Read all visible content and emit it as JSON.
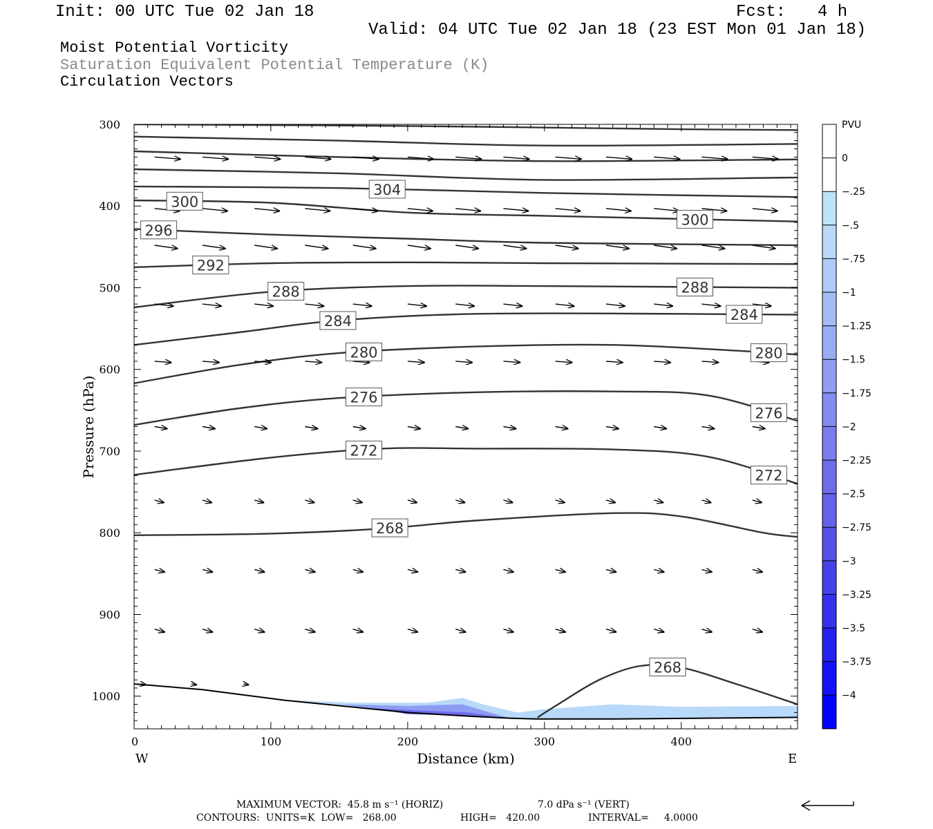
{
  "header": {
    "init": "Init: 00 UTC Tue 02 Jan 18",
    "fcst_label": "Fcst:",
    "fcst_value": "4 h",
    "valid": "Valid: 04 UTC Tue 02 Jan 18 (23 EST Mon 01 Jan 18)",
    "field1": "Moist Potential Vorticity",
    "field2": "Saturation Equivalent Potential Temperature (K)",
    "field3": "Circulation Vectors"
  },
  "footer": {
    "max_vector": "MAXIMUM VECTOR:  45.8 m s⁻¹ (HORIZ)",
    "vert": "7.0 dPa s⁻¹ (VERT)",
    "contours": "CONTOURS:  UNITS=K  LOW=   268.00",
    "high": "HIGH=   420.00",
    "interval": "INTERVAL=     4.0000"
  },
  "colors": {
    "contour": "#333333",
    "vector": "#000000",
    "pv_light": "#bde3fa",
    "pv_mid": "#8f9cf2",
    "pv_dark": "#0000ff"
  },
  "chart_data": {
    "type": "cross-section",
    "xlabel": "Distance (km)",
    "ylabel": "Pressure (hPa)",
    "xlim": [
      0,
      485
    ],
    "ylim": [
      1040,
      300
    ],
    "x_ticks": [
      0,
      100,
      200,
      300,
      400
    ],
    "y_ticks": [
      300,
      400,
      500,
      600,
      700,
      800,
      900,
      1000
    ],
    "x_end_labels": {
      "left": "W",
      "right": "E"
    },
    "colorbar": {
      "title": "PVU",
      "labels": [
        "0",
        "-.25",
        "-.5",
        "-.75",
        "-1",
        "-1.25",
        "-1.5",
        "-1.75",
        "-2",
        "-2.25",
        "-2.5",
        "-2.75",
        "-3",
        "-3.25",
        "-3.5",
        "-3.75",
        "-4"
      ],
      "colors": [
        "#ffffff",
        "#ffffff",
        "#bde3fa",
        "#b8d9fa",
        "#aecaf7",
        "#a4bbf5",
        "#99adf3",
        "#8f9cf2",
        "#838cf0",
        "#7a7cee",
        "#6f6cec",
        "#6461ea",
        "#5451e9",
        "#4542e9",
        "#3432ec",
        "#2322f0",
        "#1212f6",
        "#0000ff"
      ]
    },
    "theta_contours": [
      {
        "level": null,
        "points": [
          [
            0,
            300
          ],
          [
            200,
            302
          ],
          [
            400,
            306
          ],
          [
            485,
            307
          ]
        ]
      },
      {
        "level": null,
        "points": [
          [
            0,
            315
          ],
          [
            150,
            320
          ],
          [
            300,
            326
          ],
          [
            485,
            324
          ]
        ]
      },
      {
        "level": null,
        "points": [
          [
            0,
            333
          ],
          [
            150,
            340
          ],
          [
            300,
            345
          ],
          [
            485,
            343
          ]
        ]
      },
      {
        "level": null,
        "points": [
          [
            0,
            355
          ],
          [
            150,
            360
          ],
          [
            300,
            368
          ],
          [
            485,
            365
          ]
        ]
      },
      {
        "level": 304,
        "points": [
          [
            0,
            376
          ],
          [
            150,
            378
          ],
          [
            300,
            384
          ],
          [
            485,
            389
          ]
        ]
      },
      {
        "level": 300,
        "points": [
          [
            0,
            393
          ],
          [
            100,
            396
          ],
          [
            200,
            408
          ],
          [
            300,
            412
          ],
          [
            485,
            419
          ]
        ]
      },
      {
        "level": 296,
        "points": [
          [
            0,
            428
          ],
          [
            100,
            435
          ],
          [
            200,
            440
          ],
          [
            300,
            445
          ],
          [
            485,
            448
          ]
        ]
      },
      {
        "level": 292,
        "points": [
          [
            0,
            475
          ],
          [
            100,
            470
          ],
          [
            200,
            469
          ],
          [
            300,
            470
          ],
          [
            485,
            471
          ]
        ]
      },
      {
        "level": 288,
        "points": [
          [
            0,
            524
          ],
          [
            100,
            505
          ],
          [
            200,
            498
          ],
          [
            300,
            498
          ],
          [
            485,
            500
          ]
        ]
      },
      {
        "level": 284,
        "points": [
          [
            0,
            570
          ],
          [
            75,
            555
          ],
          [
            150,
            540
          ],
          [
            250,
            532
          ],
          [
            400,
            532
          ],
          [
            485,
            533
          ]
        ]
      },
      {
        "level": 280,
        "points": [
          [
            0,
            617
          ],
          [
            75,
            595
          ],
          [
            150,
            580
          ],
          [
            250,
            572
          ],
          [
            350,
            570
          ],
          [
            450,
            578
          ],
          [
            485,
            582
          ]
        ]
      },
      {
        "level": 276,
        "points": [
          [
            0,
            668
          ],
          [
            75,
            648
          ],
          [
            150,
            635
          ],
          [
            250,
            628
          ],
          [
            350,
            627
          ],
          [
            420,
            632
          ],
          [
            485,
            663
          ]
        ]
      },
      {
        "level": 272,
        "points": [
          [
            0,
            729
          ],
          [
            100,
            708
          ],
          [
            180,
            697
          ],
          [
            250,
            697
          ],
          [
            350,
            698
          ],
          [
            420,
            707
          ],
          [
            485,
            740
          ]
        ]
      },
      {
        "level": 268,
        "points": [
          [
            0,
            803
          ],
          [
            100,
            801
          ],
          [
            180,
            795
          ],
          [
            250,
            785
          ],
          [
            350,
            776
          ],
          [
            400,
            780
          ],
          [
            460,
            800
          ],
          [
            485,
            805
          ]
        ]
      },
      {
        "level": 268,
        "points": [
          [
            295,
            1026
          ],
          [
            310,
            1010
          ],
          [
            340,
            980
          ],
          [
            370,
            963
          ],
          [
            400,
            965
          ],
          [
            440,
            985
          ],
          [
            485,
            1010
          ]
        ]
      }
    ],
    "terrain": [
      [
        0,
        985
      ],
      [
        50,
        992
      ],
      [
        110,
        1005
      ],
      [
        200,
        1020
      ],
      [
        250,
        1025
      ],
      [
        275,
        1027
      ],
      [
        295,
        1028
      ],
      [
        350,
        1028
      ],
      [
        485,
        1026
      ]
    ],
    "pv_negative": [
      {
        "value": -0.5,
        "points": [
          [
            115,
            1005
          ],
          [
            160,
            1008
          ],
          [
            215,
            1008
          ],
          [
            240,
            1002
          ],
          [
            255,
            1010
          ],
          [
            280,
            1020
          ],
          [
            300,
            1016
          ],
          [
            350,
            1010
          ],
          [
            400,
            1013
          ],
          [
            485,
            1012
          ],
          [
            485,
            1026
          ],
          [
            350,
            1028
          ],
          [
            295,
            1028
          ],
          [
            275,
            1027
          ],
          [
            250,
            1025
          ],
          [
            200,
            1020
          ],
          [
            115,
            1005
          ]
        ]
      },
      {
        "value": -1.5,
        "points": [
          [
            150,
            1010
          ],
          [
            200,
            1012
          ],
          [
            240,
            1010
          ],
          [
            260,
            1020
          ],
          [
            275,
            1027
          ],
          [
            200,
            1020
          ],
          [
            150,
            1010
          ]
        ]
      },
      {
        "value": -2.25,
        "points": [
          [
            175,
            1015
          ],
          [
            215,
            1018
          ],
          [
            245,
            1020
          ],
          [
            265,
            1025
          ],
          [
            200,
            1022
          ],
          [
            175,
            1015
          ]
        ]
      }
    ],
    "vectors": {
      "rows": [
        {
          "p": 340,
          "xs": [
            15,
            50,
            88,
            125,
            160,
            200,
            235,
            270,
            308,
            345,
            380,
            415,
            452
          ],
          "u": 0.62,
          "w": -0.05
        },
        {
          "p": 403,
          "xs": [
            15,
            50,
            88,
            125,
            160,
            200,
            235,
            270,
            308,
            345,
            380,
            415,
            452
          ],
          "u": 0.6,
          "w": -0.06
        },
        {
          "p": 448,
          "xs": [
            15,
            50,
            88,
            125,
            160,
            200,
            235,
            270,
            308,
            345,
            380,
            415,
            452
          ],
          "u": 0.55,
          "w": -0.08
        },
        {
          "p": 520,
          "xs": [
            15,
            50,
            88,
            125,
            160,
            200,
            235,
            270,
            308,
            345,
            380,
            415,
            452
          ],
          "u": 0.45,
          "w": -0.05
        },
        {
          "p": 590,
          "xs": [
            15,
            50,
            88,
            125,
            160,
            200,
            235,
            270,
            308,
            345,
            380,
            415,
            452
          ],
          "u": 0.4,
          "w": -0.03
        },
        {
          "p": 670,
          "xs": [
            15,
            50,
            88,
            125,
            160,
            200,
            235,
            270,
            308,
            345,
            380,
            415,
            452
          ],
          "u": 0.3,
          "w": -0.05
        },
        {
          "p": 760,
          "xs": [
            15,
            50,
            88,
            125,
            160,
            200,
            235,
            270,
            308,
            345,
            380,
            415,
            452
          ],
          "u": 0.22,
          "w": -0.06
        },
        {
          "p": 845,
          "xs": [
            15,
            50,
            88,
            125,
            160,
            200,
            235,
            270,
            308,
            345,
            380,
            415,
            452
          ],
          "u": 0.24,
          "w": -0.06
        },
        {
          "p": 918,
          "xs": [
            15,
            50,
            88,
            125,
            160,
            200,
            235,
            270,
            308,
            345,
            380,
            415,
            452
          ],
          "u": 0.24,
          "w": -0.07
        },
        {
          "p": 985,
          "xs": [
            5,
            42,
            80
          ],
          "u": 0.12,
          "w": -0.02
        }
      ]
    }
  }
}
